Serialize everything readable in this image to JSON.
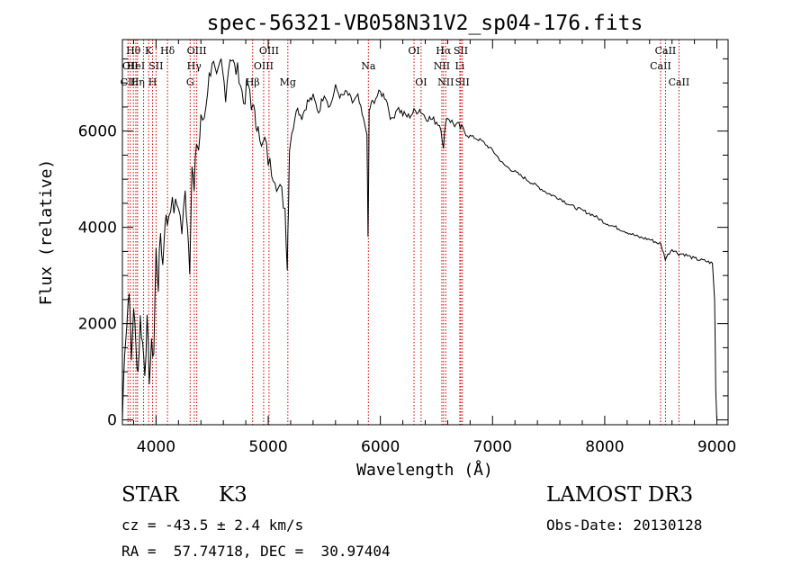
{
  "chart_data": {
    "type": "line",
    "title": "spec-56321-VB058N31V2_sp04-176.fits",
    "xlabel": "Wavelength (Å)",
    "ylabel": "Flux (relative)",
    "xlim": [
      3700,
      9100
    ],
    "ylim": [
      -100,
      7900
    ],
    "xticks": [
      4000,
      5000,
      6000,
      7000,
      8000,
      9000
    ],
    "yticks": [
      0,
      2000,
      4000,
      6000
    ],
    "grid": false,
    "series": [
      {
        "name": "spectrum",
        "x": [
          3700,
          3720,
          3740,
          3760,
          3780,
          3800,
          3820,
          3840,
          3860,
          3880,
          3900,
          3920,
          3940,
          3960,
          3980,
          4000,
          4020,
          4040,
          4060,
          4080,
          4100,
          4130,
          4160,
          4200,
          4230,
          4260,
          4280,
          4300,
          4320,
          4340,
          4360,
          4380,
          4400,
          4430,
          4460,
          4500,
          4540,
          4580,
          4620,
          4660,
          4700,
          4740,
          4780,
          4820,
          4850,
          4870,
          4890,
          4910,
          4940,
          4970,
          5000,
          5030,
          5060,
          5090,
          5120,
          5150,
          5170,
          5180,
          5190,
          5210,
          5250,
          5300,
          5350,
          5400,
          5450,
          5500,
          5550,
          5600,
          5650,
          5700,
          5750,
          5800,
          5850,
          5880,
          5890,
          5895,
          5900,
          5910,
          5930,
          5960,
          6000,
          6050,
          6100,
          6150,
          6200,
          6250,
          6300,
          6350,
          6400,
          6450,
          6500,
          6540,
          6563,
          6580,
          6600,
          6650,
          6700,
          6750,
          6800,
          6900,
          7000,
          7100,
          7200,
          7300,
          7400,
          7500,
          7600,
          7700,
          7800,
          7900,
          8000,
          8100,
          8200,
          8300,
          8400,
          8500,
          8540,
          8600,
          8660,
          8700,
          8800,
          8900,
          8960,
          8980,
          8990,
          9000
        ],
        "values": [
          0,
          1500,
          2000,
          2800,
          1200,
          2400,
          1500,
          1000,
          2100,
          1600,
          1050,
          2000,
          900,
          1500,
          1400,
          3500,
          2800,
          3900,
          3200,
          4200,
          4100,
          4500,
          4400,
          4500,
          3900,
          4700,
          4100,
          3200,
          5300,
          4700,
          5800,
          5600,
          6200,
          6300,
          6900,
          7500,
          7000,
          7400,
          6800,
          7600,
          7300,
          7200,
          6600,
          7000,
          6400,
          6700,
          5900,
          6300,
          5600,
          5800,
          5400,
          5200,
          5100,
          4800,
          4700,
          4400,
          3200,
          4500,
          5700,
          5900,
          6500,
          6300,
          6600,
          6700,
          6400,
          6800,
          6500,
          6900,
          6700,
          6800,
          6600,
          6700,
          6200,
          6000,
          3800,
          5000,
          6400,
          6500,
          6600,
          6700,
          6800,
          6700,
          6200,
          6500,
          6350,
          6300,
          6400,
          6450,
          6300,
          6250,
          6200,
          6100,
          5600,
          6200,
          6300,
          6150,
          6100,
          6000,
          5900,
          5800,
          5600,
          5300,
          5150,
          5000,
          4850,
          4700,
          4600,
          4450,
          4350,
          4250,
          4100,
          4000,
          3900,
          3800,
          3750,
          3650,
          3350,
          3550,
          3450,
          3450,
          3350,
          3300,
          3250,
          2500,
          600,
          0
        ]
      }
    ],
    "line_markers": [
      {
        "wl": 3750,
        "label": "CII",
        "row": 2
      },
      {
        "wl": 3770,
        "label": "OII",
        "row": 1
      },
      {
        "wl": 3798,
        "label": "Hθ",
        "row": 0
      },
      {
        "wl": 3820,
        "label": "HeI",
        "row": 1
      },
      {
        "wl": 3835,
        "label": "Hη",
        "row": 2
      },
      {
        "wl": 3889,
        "label": "",
        "row": -1
      },
      {
        "wl": 3934,
        "label": "K",
        "row": 0
      },
      {
        "wl": 3969,
        "label": "H",
        "row": 2
      },
      {
        "wl": 4000,
        "label": "SII",
        "row": 1
      },
      {
        "wl": 4102,
        "label": "Hδ",
        "row": 0
      },
      {
        "wl": 4304,
        "label": "G",
        "row": 2
      },
      {
        "wl": 4340,
        "label": "Hγ",
        "row": 1
      },
      {
        "wl": 4363,
        "label": "OIII",
        "row": 0
      },
      {
        "wl": 4861,
        "label": "Hβ",
        "row": 2
      },
      {
        "wl": 4959,
        "label": "OIII",
        "row": 1
      },
      {
        "wl": 5007,
        "label": "OIII",
        "row": 0
      },
      {
        "wl": 5175,
        "label": "Mg",
        "row": 2
      },
      {
        "wl": 5893,
        "label": "Na",
        "row": 1
      },
      {
        "wl": 6300,
        "label": "OI",
        "row": 0
      },
      {
        "wl": 6363,
        "label": "OI",
        "row": 2
      },
      {
        "wl": 6548,
        "label": "NII",
        "row": 1
      },
      {
        "wl": 6563,
        "label": "Hα",
        "row": 0
      },
      {
        "wl": 6583,
        "label": "NII",
        "row": 2
      },
      {
        "wl": 6708,
        "label": "Li",
        "row": 1
      },
      {
        "wl": 6717,
        "label": "SII",
        "row": 0
      },
      {
        "wl": 6731,
        "label": "SII",
        "row": 2
      },
      {
        "wl": 8498,
        "label": "CaII",
        "row": 1
      },
      {
        "wl": 8542,
        "label": "CaII",
        "row": 0
      },
      {
        "wl": 8662,
        "label": "CaII",
        "row": 2
      }
    ],
    "marker_color": "#cc0000"
  },
  "info": {
    "object_class": "STAR",
    "subclass": "K3",
    "survey": "LAMOST DR3",
    "redshift_line": "cz = -43.5 ± 2.4 km/s",
    "obs_date_line": "Obs-Date: 20130128",
    "coords_line": "RA =  57.74718, DEC =  30.97404"
  }
}
